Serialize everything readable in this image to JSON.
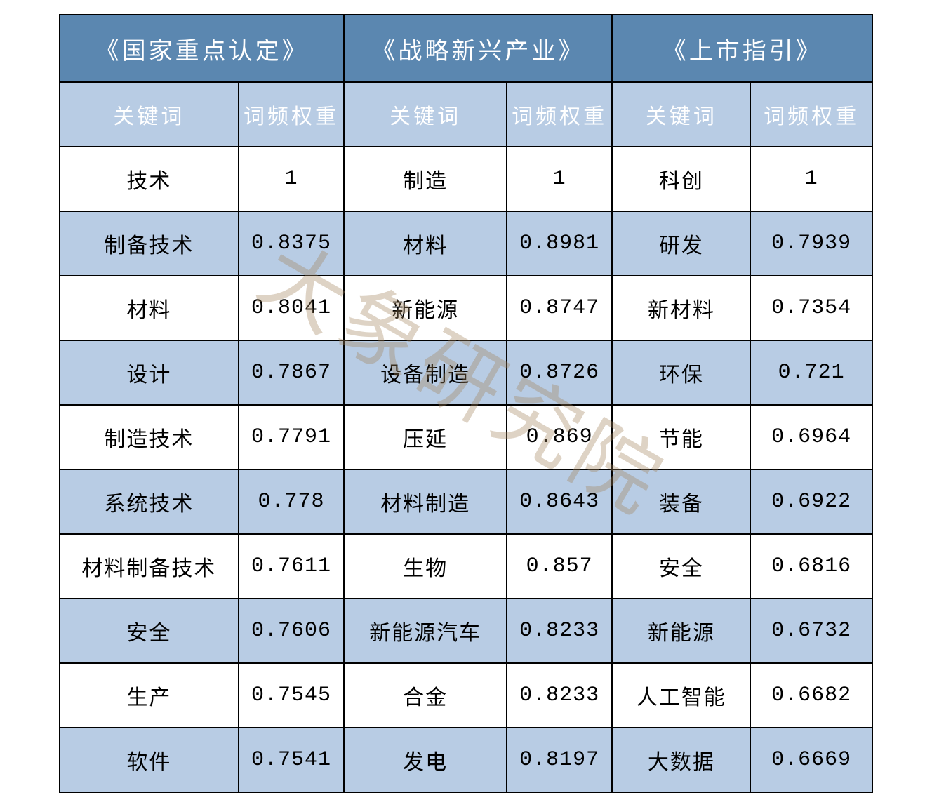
{
  "type": "table",
  "watermark_text": "大象研究院",
  "colors": {
    "header_bg": "#5b87b0",
    "subheader_bg": "#b8cce4",
    "row_alt_bg": "#b8cce4",
    "row_bg": "#ffffff",
    "border": "#000000",
    "header_text": "#ffffff",
    "cell_text": "#000000",
    "watermark": "rgba(160,130,90,0.35)"
  },
  "fontsize": {
    "group_header": 34,
    "sub_header": 30,
    "cell": 30,
    "watermark": 120
  },
  "groups": [
    {
      "title": "《国家重点认定》",
      "sub": [
        "关键词",
        "词频权重"
      ]
    },
    {
      "title": "《战略新兴产业》",
      "sub": [
        "关键词",
        "词频权重"
      ]
    },
    {
      "title": "《上市指引》",
      "sub": [
        "关键词",
        "词频权重"
      ]
    }
  ],
  "rows": [
    {
      "alt": false,
      "cells": [
        "技术",
        "1",
        "制造",
        "1",
        "科创",
        "1"
      ]
    },
    {
      "alt": true,
      "cells": [
        "制备技术",
        "0.8375",
        "材料",
        "0.8981",
        "研发",
        "0.7939"
      ]
    },
    {
      "alt": false,
      "cells": [
        "材料",
        "0.8041",
        "新能源",
        "0.8747",
        "新材料",
        "0.7354"
      ]
    },
    {
      "alt": true,
      "cells": [
        "设计",
        "0.7867",
        "设备制造",
        "0.8726",
        "环保",
        "0.721"
      ]
    },
    {
      "alt": false,
      "cells": [
        "制造技术",
        "0.7791",
        "压延",
        "0.869",
        "节能",
        "0.6964"
      ]
    },
    {
      "alt": true,
      "cells": [
        "系统技术",
        "0.778",
        "材料制造",
        "0.8643",
        "装备",
        "0.6922"
      ]
    },
    {
      "alt": false,
      "cells": [
        "材料制备技术",
        "0.7611",
        "生物",
        "0.857",
        "安全",
        "0.6816"
      ]
    },
    {
      "alt": true,
      "cells": [
        "安全",
        "0.7606",
        "新能源汽车",
        "0.8233",
        "新能源",
        "0.6732"
      ]
    },
    {
      "alt": false,
      "cells": [
        "生产",
        "0.7545",
        "合金",
        "0.8233",
        "人工智能",
        "0.6682"
      ]
    },
    {
      "alt": true,
      "cells": [
        "软件",
        "0.7541",
        "发电",
        "0.8197",
        "大数据",
        "0.6669"
      ]
    }
  ],
  "column_widths_pct": [
    22,
    13,
    20,
    13,
    17,
    15
  ]
}
